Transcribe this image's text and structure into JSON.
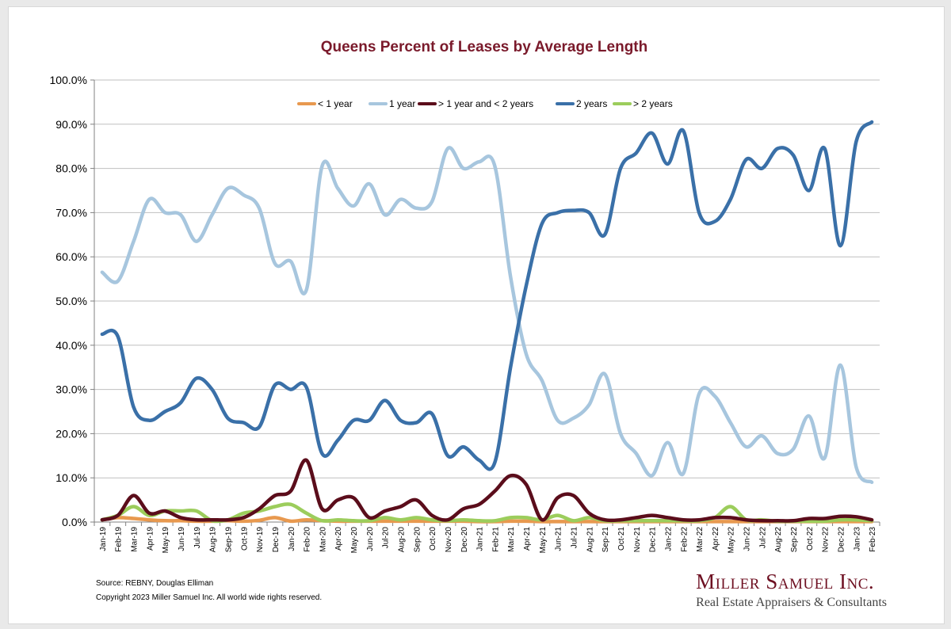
{
  "colors": {
    "title": "#7a1a2b",
    "grid": "#bfbfbf",
    "axis": "#808080",
    "brand": "#6e1022"
  },
  "footer": {
    "source": "Source: REBNY, Douglas Elliman",
    "copyright": "Copyright 2023 Miller Samuel Inc.  All world wide rights reserved."
  },
  "brand": {
    "name": "Miller Samuel Inc.",
    "tagline": "Real Estate Appraisers & Consultants"
  },
  "chart_data": {
    "type": "line",
    "title": "Queens Percent of Leases by Average Length",
    "xlabel": "",
    "ylabel": "",
    "ylim": [
      0,
      100
    ],
    "yticks": [
      "0.0%",
      "10.0%",
      "20.0%",
      "30.0%",
      "40.0%",
      "50.0%",
      "60.0%",
      "70.0%",
      "80.0%",
      "90.0%",
      "100.0%"
    ],
    "grid": true,
    "legend_position": "top",
    "categories": [
      "Jan-19",
      "Feb-19",
      "Mar-19",
      "Apr-19",
      "May-19",
      "Jun-19",
      "Jul-19",
      "Aug-19",
      "Sep-19",
      "Oct-19",
      "Nov-19",
      "Dec-19",
      "Jan-20",
      "Feb-20",
      "Mar-20",
      "Apr-20",
      "May-20",
      "Jun-20",
      "Jul-20",
      "Aug-20",
      "Sep-20",
      "Oct-20",
      "Nov-20",
      "Dec-20",
      "Jan-21",
      "Feb-21",
      "Mar-21",
      "Apr-21",
      "May-21",
      "Jun-21",
      "Jul-21",
      "Aug-21",
      "Sep-21",
      "Oct-21",
      "Nov-21",
      "Dec-21",
      "Jan-22",
      "Feb-22",
      "Mar-22",
      "Apr-22",
      "May-22",
      "Jun-22",
      "Jul-22",
      "Aug-22",
      "Sep-22",
      "Oct-22",
      "Nov-22",
      "Dec-22",
      "Jan-23",
      "Feb-23"
    ],
    "series": [
      {
        "name": "< 1 year",
        "color": "#e8994f",
        "values": [
          0.5,
          1.0,
          0.8,
          0.5,
          0.3,
          0.3,
          0.2,
          0.2,
          0.3,
          0.2,
          0.4,
          1.0,
          0.2,
          0.5,
          0.3,
          0.2,
          0.2,
          0.2,
          0.2,
          0.2,
          0.2,
          0.2,
          0.2,
          0.2,
          0.1,
          0.1,
          0.2,
          0.2,
          0.1,
          0.1,
          0.1,
          0.1,
          0.1,
          0.1,
          0.1,
          0.1,
          0.1,
          0.1,
          0.1,
          0.1,
          0.1,
          0.1,
          0.1,
          0.1,
          0.1,
          0.1,
          0.1,
          0.1,
          0.1,
          0.1
        ]
      },
      {
        "name": "1 year",
        "color": "#a7c6de",
        "values": [
          56.5,
          54.5,
          63.5,
          73.0,
          70.0,
          69.5,
          63.5,
          69.5,
          75.5,
          74.0,
          71.0,
          58.5,
          59.0,
          52.5,
          80.5,
          75.5,
          71.5,
          76.5,
          69.5,
          73.0,
          71.0,
          72.5,
          84.5,
          80.0,
          81.5,
          80.5,
          55.5,
          38.0,
          32.0,
          23.0,
          23.5,
          26.5,
          33.5,
          20.0,
          15.5,
          10.5,
          18.0,
          11.0,
          29.0,
          28.5,
          22.5,
          17.0,
          19.5,
          15.5,
          16.5,
          24.0,
          14.5,
          35.5,
          12.5,
          9.0
        ]
      },
      {
        "name": "> 1 year and < 2 years",
        "color": "#5b0d1b",
        "values": [
          0.5,
          1.5,
          6.0,
          2.0,
          2.5,
          1.0,
          0.5,
          0.5,
          0.5,
          1.0,
          3.0,
          6.0,
          7.0,
          14.0,
          3.0,
          5.0,
          5.5,
          1.0,
          2.5,
          3.5,
          5.0,
          1.5,
          0.5,
          3.0,
          4.0,
          7.0,
          10.5,
          8.5,
          0.5,
          5.5,
          6.0,
          2.0,
          0.5,
          0.5,
          1.0,
          1.5,
          1.0,
          0.5,
          0.5,
          1.0,
          1.0,
          0.5,
          0.3,
          0.3,
          0.3,
          0.8,
          0.8,
          1.3,
          1.2,
          0.5
        ]
      },
      {
        "name": "2 years",
        "color": "#3a70a8",
        "values": [
          42.5,
          42.0,
          26.0,
          23.0,
          25.0,
          27.0,
          32.5,
          30.0,
          23.5,
          22.5,
          21.5,
          31.0,
          30.0,
          30.5,
          15.5,
          18.5,
          23.0,
          23.0,
          27.5,
          23.0,
          22.5,
          24.5,
          15.0,
          17.0,
          14.0,
          13.5,
          35.0,
          53.5,
          67.5,
          70.0,
          70.5,
          70.0,
          65.0,
          80.0,
          83.5,
          88.0,
          81.0,
          88.5,
          70.0,
          68.0,
          73.0,
          82.0,
          80.0,
          84.5,
          83.0,
          75.0,
          84.5,
          62.5,
          86.0,
          90.5
        ]
      },
      {
        "name": "> 2 years",
        "color": "#9ccd5c",
        "values": [
          0.5,
          1.5,
          3.5,
          1.5,
          2.5,
          2.5,
          2.5,
          0.3,
          0.5,
          2.0,
          2.5,
          3.5,
          4.0,
          2.0,
          0.3,
          0.5,
          0.3,
          0.3,
          1.0,
          0.5,
          1.0,
          0.5,
          0.3,
          0.5,
          0.3,
          0.3,
          1.0,
          1.0,
          0.5,
          1.5,
          0.3,
          1.0,
          0.3,
          0.3,
          0.3,
          0.3,
          0.3,
          0.3,
          0.3,
          1.0,
          3.5,
          0.5,
          0.5,
          0.2,
          0.2,
          0.2,
          0.2,
          0.5,
          0.5,
          0.3
        ]
      }
    ]
  }
}
